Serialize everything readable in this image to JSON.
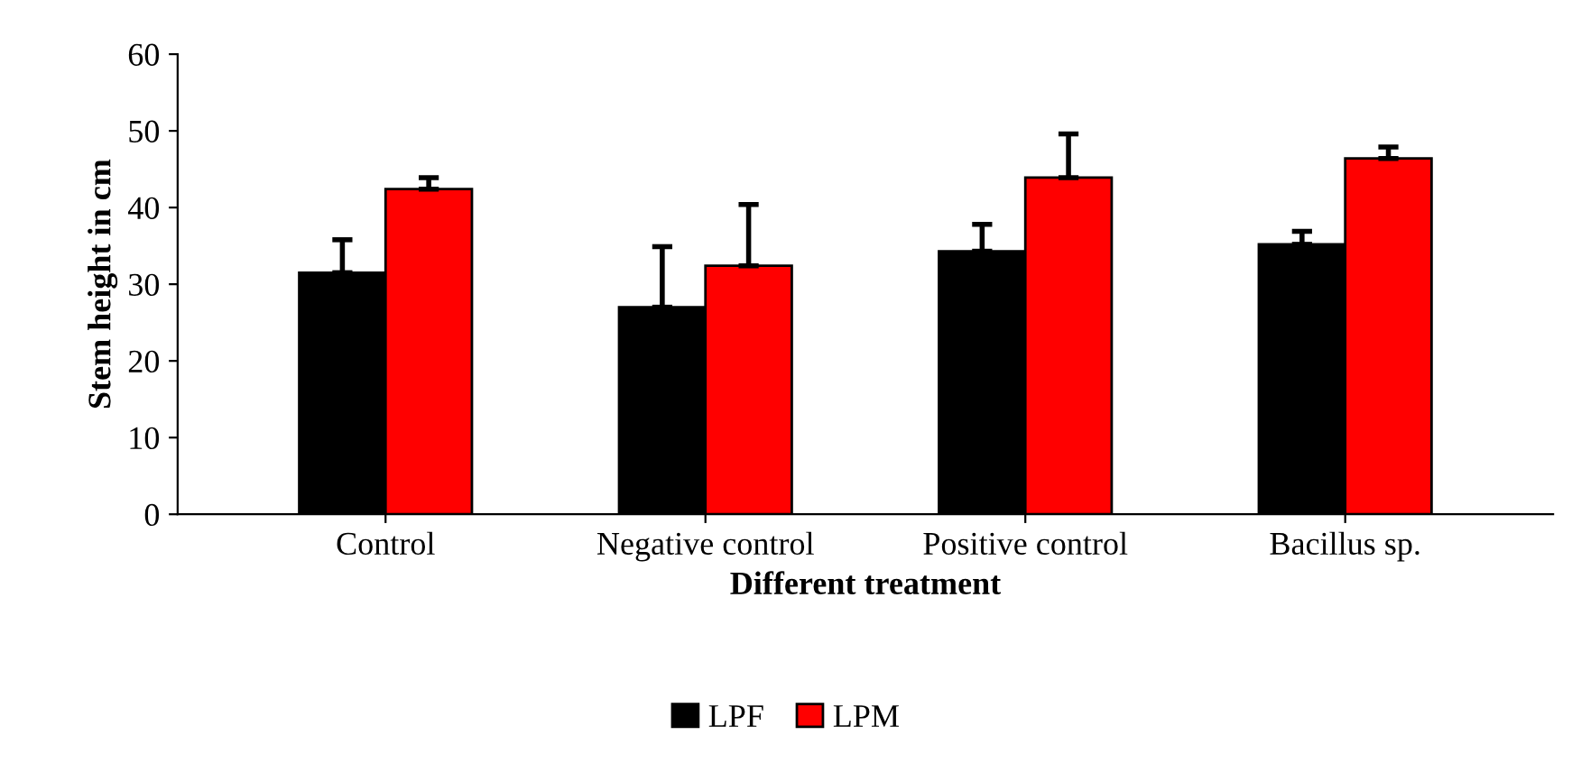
{
  "chart_data": {
    "type": "bar",
    "xlabel": "Different treatment",
    "ylabel": "Stem height in cm",
    "categories": [
      "Control",
      "Negative control",
      "Positive control",
      "Bacillus sp."
    ],
    "series": [
      {
        "name": "LPF",
        "color": "#000000",
        "values": [
          31.5,
          27.0,
          34.3,
          35.2
        ],
        "errors": [
          4.3,
          7.9,
          3.5,
          1.7
        ]
      },
      {
        "name": "LPM",
        "color": "#ff0000",
        "values": [
          42.4,
          32.4,
          43.9,
          46.4
        ],
        "errors": [
          1.5,
          8.0,
          5.7,
          1.5
        ]
      }
    ],
    "ylim": [
      0,
      60
    ],
    "yticks": [
      0,
      10,
      20,
      30,
      40,
      50,
      60
    ],
    "grid": false,
    "legend": "bottom"
  }
}
